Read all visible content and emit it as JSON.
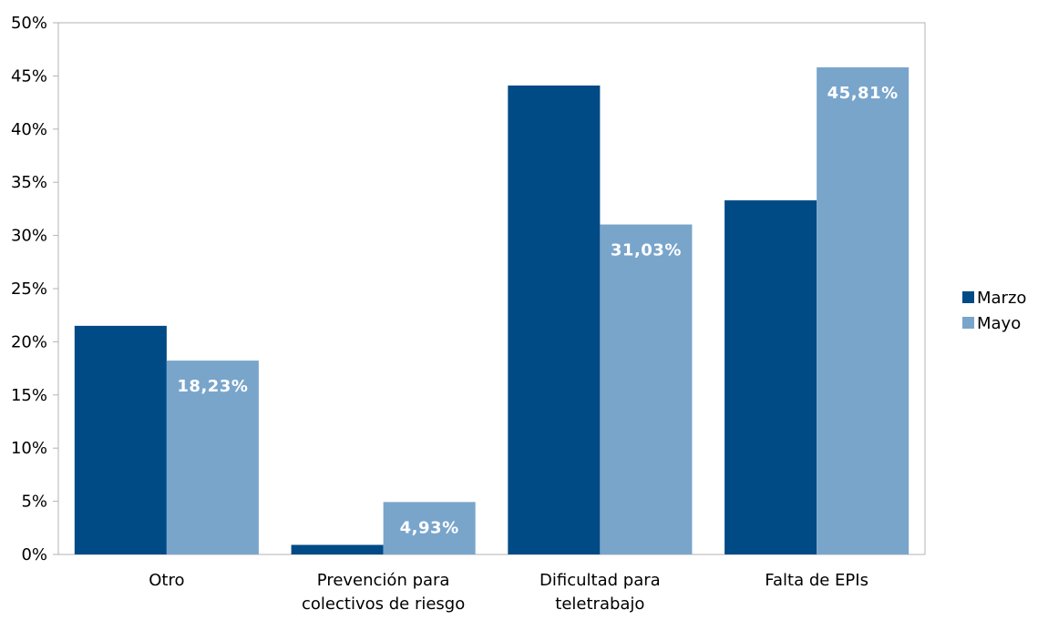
{
  "chart_data": {
    "type": "bar",
    "categories": [
      [
        "Otro"
      ],
      [
        "Prevención para",
        "colectivos de riesgo"
      ],
      [
        "Dificultad para",
        "teletrabajo"
      ],
      [
        "Falta de EPIs"
      ]
    ],
    "series": [
      {
        "name": "Marzo",
        "color": "#004a86",
        "values": [
          21.5,
          0.9,
          44.1,
          33.3
        ],
        "labels": [
          null,
          null,
          null,
          null
        ]
      },
      {
        "name": "Mayo",
        "color": "#79a5cb",
        "values": [
          18.23,
          4.93,
          31.03,
          45.81
        ],
        "labels": [
          "18,23%",
          "4,93%",
          "31,03%",
          "45,81%"
        ]
      }
    ],
    "y_ticks": [
      "0%",
      "5%",
      "10%",
      "15%",
      "20%",
      "25%",
      "30%",
      "35%",
      "40%",
      "45%",
      "50%"
    ],
    "ylim": [
      0,
      50
    ],
    "grid": false,
    "legend": "right",
    "title": "",
    "xlabel": "",
    "ylabel": ""
  }
}
